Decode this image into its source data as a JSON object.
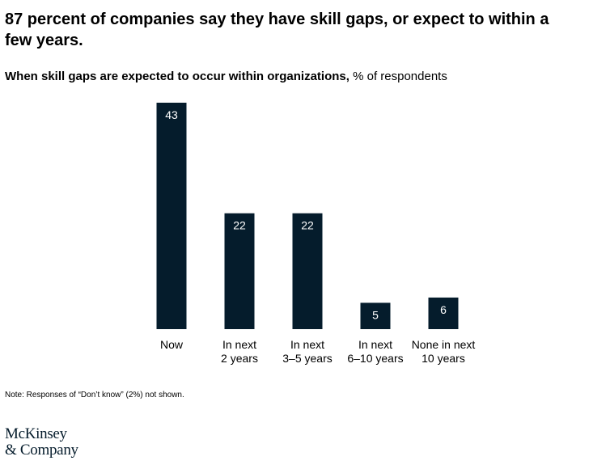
{
  "chart_data": {
    "type": "bar",
    "title": "87 percent of companies say they have skill gaps, or expect to within a few years.",
    "subtitle_bold": "When skill gaps are expected to occur within organizations,",
    "subtitle_regular": "% of respondents",
    "categories": [
      [
        "Now"
      ],
      [
        "In next",
        "2 years"
      ],
      [
        "In next",
        "3–5 years"
      ],
      [
        "In next",
        "6–10 years"
      ],
      [
        "None in next",
        "10 years"
      ]
    ],
    "values": [
      43,
      22,
      22,
      5,
      6
    ],
    "ylim": [
      0,
      43
    ],
    "bar_color": "#051c2c",
    "label_color": "#ffffff",
    "grid": false,
    "legend": "none"
  },
  "note": "Note: Responses of “Don’t know” (2%) not shown.",
  "logo": {
    "line1": "McKinsey",
    "line2": "& Company"
  }
}
